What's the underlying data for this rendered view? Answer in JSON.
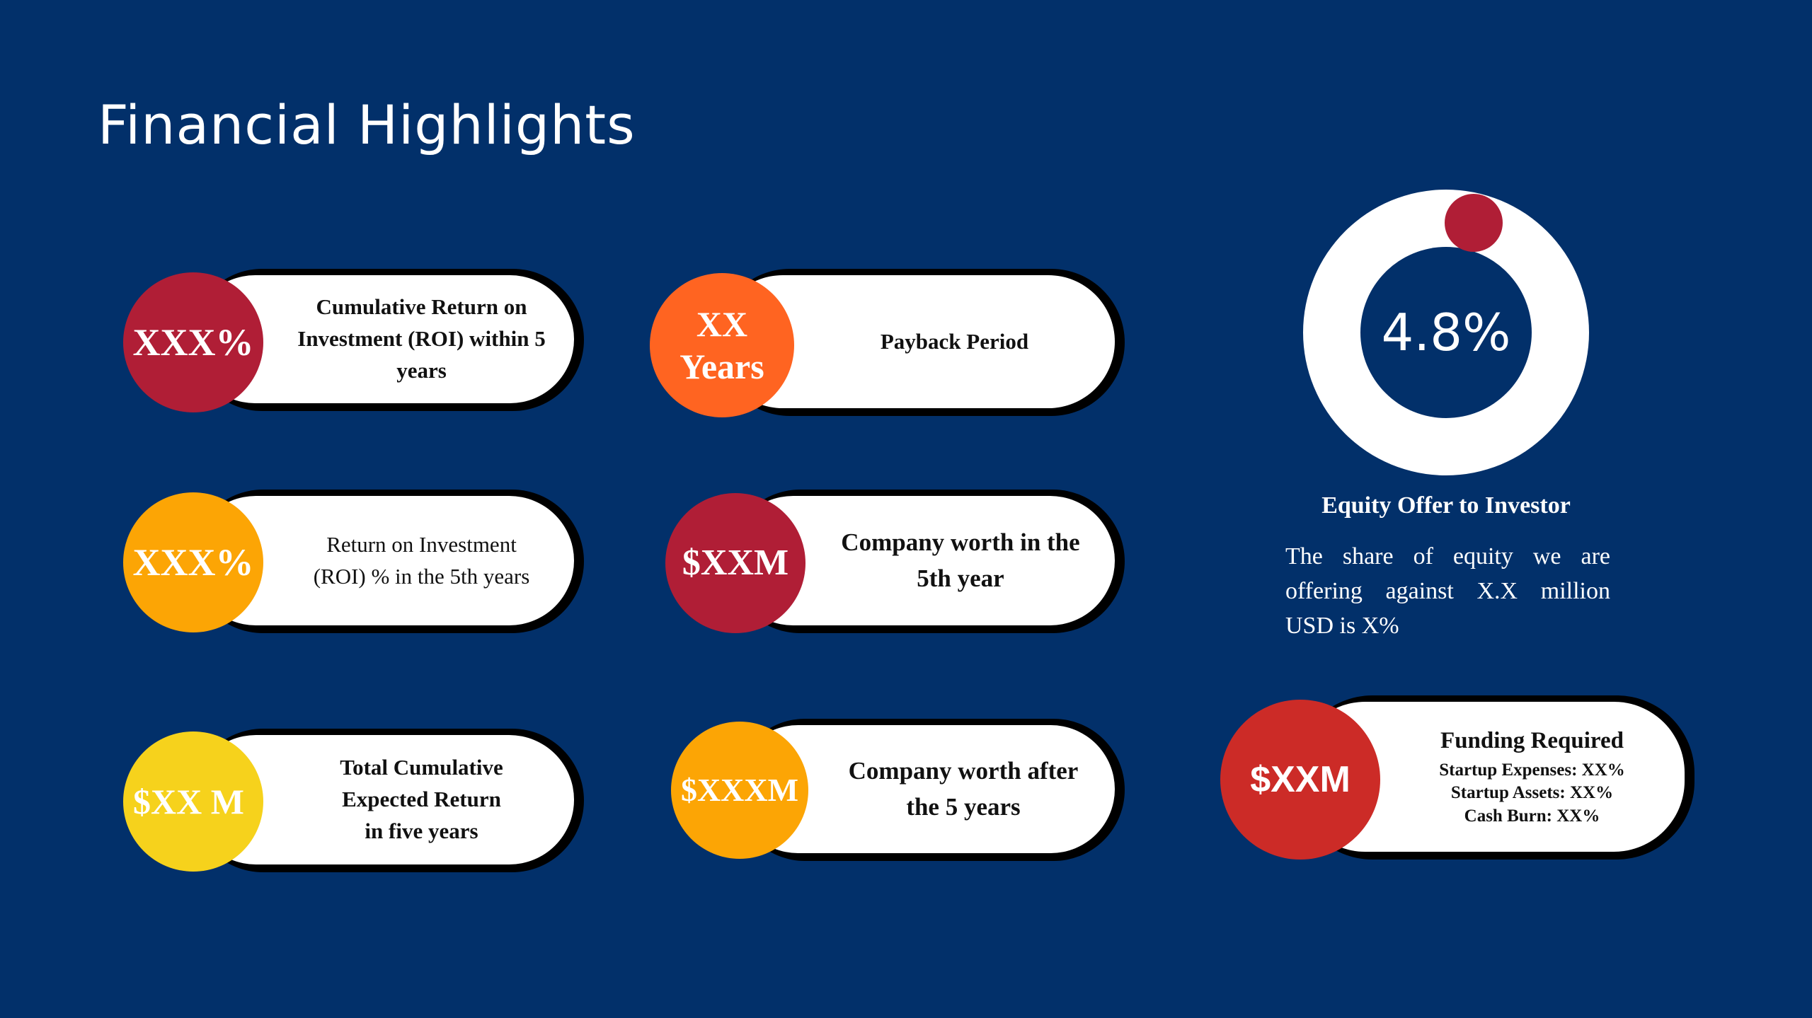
{
  "title": "Financial Highlights",
  "colors": {
    "background": "#02306a",
    "crimson": "#b01e36",
    "orange": "#ff6421",
    "amber": "#fca505",
    "yellow": "#f6d21c",
    "red": "#cc2b27"
  },
  "cards": [
    {
      "value": "XXX%",
      "label": [
        "Cumulative Return on",
        "Investment (ROI) within 5",
        "years"
      ]
    },
    {
      "value": [
        "XX",
        "Years"
      ],
      "label": [
        "Payback Period"
      ]
    },
    {
      "value": "XXX%",
      "label": [
        "Return on Investment",
        "(ROI)  % in the 5th years"
      ]
    },
    {
      "value": "$XXM",
      "label": [
        "Company worth in the",
        "5th year"
      ]
    },
    {
      "value": "$XX M",
      "label": [
        "Total Cumulative",
        "Expected Return",
        "in five years"
      ]
    },
    {
      "value": "$XXXM",
      "label": [
        "Company worth after",
        "the 5 years"
      ]
    }
  ],
  "equity": {
    "percent": "4.8%",
    "percent_value": 4.8,
    "title": "Equity Offer to Investor",
    "text": "The share of equity we are offering against X.X million USD is X%"
  },
  "funding": {
    "value": "$XXM",
    "title": "Funding Required",
    "lines": [
      "Startup Expenses: XX%",
      "Startup Assets: XX%",
      "Cash Burn: XX%"
    ]
  }
}
